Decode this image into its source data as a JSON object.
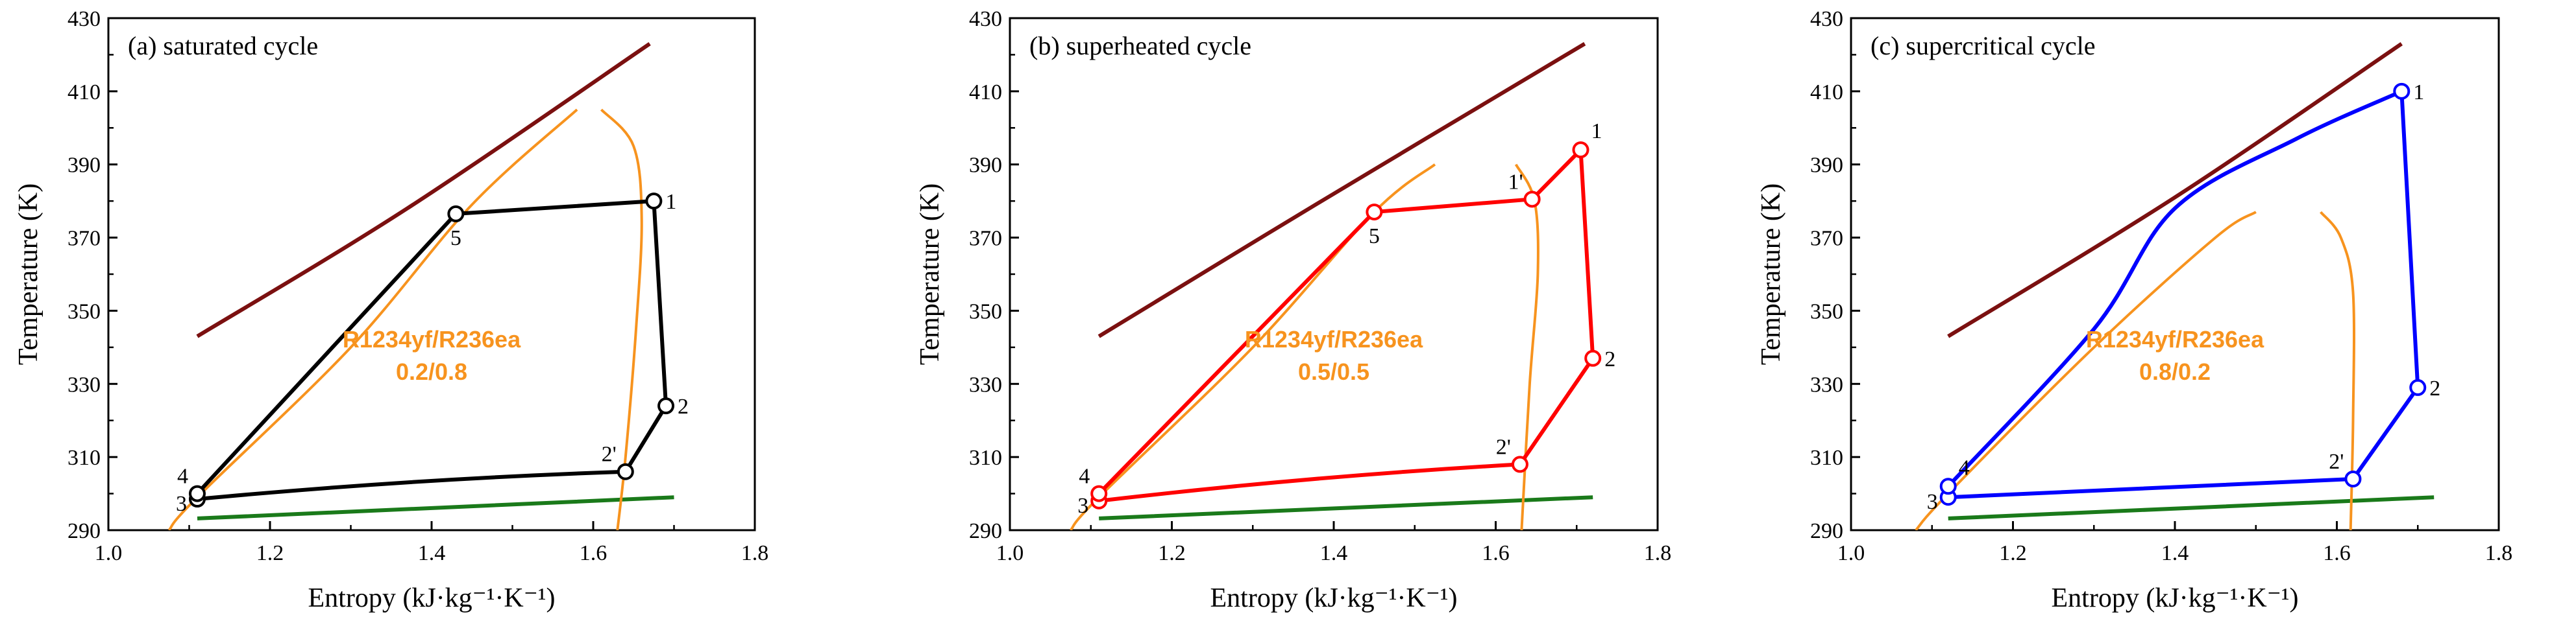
{
  "chart_data": [
    {
      "type": "line",
      "title": "(a) saturated cycle",
      "xlabel": "Entropy (kJ·kg⁻¹·K⁻¹)",
      "ylabel": "Temperature (K)",
      "xlim": [
        1.0,
        1.8
      ],
      "ylim": [
        290,
        430
      ],
      "xticks": [
        "1.0",
        "1.2",
        "1.4",
        "1.6",
        "1.8"
      ],
      "yticks": [
        "290",
        "310",
        "330",
        "350",
        "370",
        "390",
        "410",
        "430"
      ],
      "annotation": [
        "R1234yf/R236ea",
        "0.2/0.8"
      ],
      "cycle_color": "#000000",
      "heat_source": {
        "color": "#7b1010",
        "points": [
          [
            1.11,
            343
          ],
          [
            1.37,
            378
          ],
          [
            1.67,
            423
          ]
        ]
      },
      "heat_sink": {
        "color": "#1a7a1a",
        "points": [
          [
            1.11,
            293.2
          ],
          [
            1.7,
            299
          ]
        ]
      },
      "saturation_left": {
        "color": "#f7931e",
        "points": [
          [
            1.075,
            290
          ],
          [
            1.11,
            299
          ],
          [
            1.3,
            340
          ],
          [
            1.45,
            379
          ],
          [
            1.58,
            405
          ]
        ]
      },
      "saturation_right": {
        "color": "#f7931e",
        "points": [
          [
            1.61,
            405
          ],
          [
            1.65,
            395
          ],
          [
            1.66,
            375
          ],
          [
            1.653,
            345
          ],
          [
            1.64,
            310
          ],
          [
            1.63,
            290
          ]
        ]
      },
      "cycle": [
        [
          1.675,
          380
        ],
        [
          1.69,
          324
        ],
        [
          1.64,
          306
        ],
        [
          1.11,
          298.5
        ],
        [
          1.11,
          300
        ],
        [
          1.43,
          376.5
        ],
        [
          1.675,
          380
        ]
      ],
      "state_points": [
        {
          "label": "1",
          "x": 1.675,
          "y": 380,
          "pos": "right"
        },
        {
          "label": "2",
          "x": 1.69,
          "y": 324,
          "pos": "right"
        },
        {
          "label": "2'",
          "x": 1.64,
          "y": 306,
          "pos": "upleft"
        },
        {
          "label": "3",
          "x": 1.11,
          "y": 298.5,
          "pos": "left"
        },
        {
          "label": "4",
          "x": 1.11,
          "y": 300,
          "pos": "upleft"
        },
        {
          "label": "5",
          "x": 1.43,
          "y": 376.5,
          "pos": "below"
        }
      ]
    },
    {
      "type": "line",
      "title": "(b) superheated cycle",
      "xlabel": "Entropy (kJ·kg⁻¹·K⁻¹)",
      "ylabel": "Temperature (K)",
      "xlim": [
        1.0,
        1.8
      ],
      "ylim": [
        290,
        430
      ],
      "xticks": [
        "1.0",
        "1.2",
        "1.4",
        "1.6",
        "1.8"
      ],
      "yticks": [
        "290",
        "310",
        "330",
        "350",
        "370",
        "390",
        "410",
        "430"
      ],
      "annotation": [
        "R1234yf/R236ea",
        "0.5/0.5"
      ],
      "cycle_color": "#ff0000",
      "heat_source": {
        "color": "#7b1010",
        "points": [
          [
            1.11,
            343
          ],
          [
            1.37,
            378
          ],
          [
            1.71,
            423
          ]
        ]
      },
      "heat_sink": {
        "color": "#1a7a1a",
        "points": [
          [
            1.11,
            293.2
          ],
          [
            1.72,
            299
          ]
        ]
      },
      "saturation_left": {
        "color": "#f7931e",
        "points": [
          [
            1.075,
            290
          ],
          [
            1.11,
            299
          ],
          [
            1.3,
            340
          ],
          [
            1.45,
            377
          ],
          [
            1.525,
            390
          ]
        ]
      },
      "saturation_right": {
        "color": "#f7931e",
        "points": [
          [
            1.625,
            390
          ],
          [
            1.648,
            380
          ],
          [
            1.652,
            360
          ],
          [
            1.642,
            330
          ],
          [
            1.632,
            290
          ]
        ]
      },
      "cycle": [
        [
          1.705,
          394
        ],
        [
          1.72,
          337
        ],
        [
          1.63,
          308
        ],
        [
          1.11,
          298
        ],
        [
          1.11,
          300
        ],
        [
          1.45,
          377
        ],
        [
          1.645,
          380.5
        ],
        [
          1.705,
          394
        ]
      ],
      "state_points": [
        {
          "label": "1",
          "x": 1.705,
          "y": 394,
          "pos": "upright"
        },
        {
          "label": "1'",
          "x": 1.645,
          "y": 380.5,
          "pos": "upleft"
        },
        {
          "label": "2",
          "x": 1.72,
          "y": 337,
          "pos": "right"
        },
        {
          "label": "2'",
          "x": 1.63,
          "y": 308,
          "pos": "upleft"
        },
        {
          "label": "3",
          "x": 1.11,
          "y": 298,
          "pos": "left"
        },
        {
          "label": "4",
          "x": 1.11,
          "y": 300,
          "pos": "upleft"
        },
        {
          "label": "5",
          "x": 1.45,
          "y": 377,
          "pos": "below"
        }
      ]
    },
    {
      "type": "line",
      "title": "(c) supercritical cycle",
      "xlabel": "Entropy (kJ·kg⁻¹·K⁻¹)",
      "ylabel": "Temperature (K)",
      "xlim": [
        1.0,
        1.8
      ],
      "ylim": [
        290,
        430
      ],
      "xticks": [
        "1.0",
        "1.2",
        "1.4",
        "1.6",
        "1.8"
      ],
      "yticks": [
        "290",
        "310",
        "330",
        "350",
        "370",
        "390",
        "410",
        "430"
      ],
      "annotation": [
        "R1234yf/R236ea",
        "0.8/0.2"
      ],
      "cycle_color": "#0000ff",
      "heat_source": {
        "color": "#7b1010",
        "points": [
          [
            1.12,
            343
          ],
          [
            1.4,
            381
          ],
          [
            1.68,
            423
          ]
        ]
      },
      "heat_sink": {
        "color": "#1a7a1a",
        "points": [
          [
            1.12,
            293.2
          ],
          [
            1.72,
            299
          ]
        ]
      },
      "saturation_left": {
        "color": "#f7931e",
        "points": [
          [
            1.08,
            290
          ],
          [
            1.12,
            300
          ],
          [
            1.3,
            340
          ],
          [
            1.45,
            370
          ],
          [
            1.5,
            377
          ]
        ]
      },
      "saturation_right": {
        "color": "#f7931e",
        "points": [
          [
            1.58,
            377
          ],
          [
            1.605,
            370
          ],
          [
            1.62,
            355
          ],
          [
            1.62,
            320
          ],
          [
            1.617,
            290
          ]
        ]
      },
      "cycle": [
        [
          1.68,
          410
        ],
        [
          1.7,
          329
        ],
        [
          1.62,
          304
        ],
        [
          1.12,
          299
        ],
        [
          1.12,
          302
        ],
        [
          1.3,
          345
        ],
        [
          1.4,
          378
        ],
        [
          1.55,
          397
        ],
        [
          1.68,
          410
        ]
      ],
      "state_points": [
        {
          "label": "1",
          "x": 1.68,
          "y": 410,
          "pos": "right"
        },
        {
          "label": "2",
          "x": 1.7,
          "y": 329,
          "pos": "right"
        },
        {
          "label": "2'",
          "x": 1.62,
          "y": 304,
          "pos": "upleft"
        },
        {
          "label": "3",
          "x": 1.12,
          "y": 299,
          "pos": "left"
        },
        {
          "label": "4",
          "x": 1.12,
          "y": 302,
          "pos": "upright"
        }
      ]
    }
  ]
}
